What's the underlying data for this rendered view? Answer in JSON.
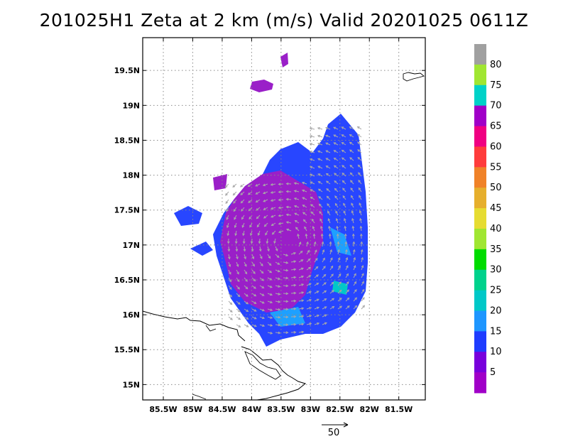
{
  "chart_data": {
    "type": "map-field",
    "title": "201025H1 Zeta at 2 km (m/s) Valid 20201025 0611Z",
    "x_tick_labels": [
      "85.5W",
      "85W",
      "84.5W",
      "84W",
      "83.5W",
      "83W",
      "82.5W",
      "82W",
      "81.5W"
    ],
    "y_tick_labels": [
      "19.5N",
      "19N",
      "18.5N",
      "18N",
      "17.5N",
      "17N",
      "16.5N",
      "16N",
      "15.5N",
      "15N"
    ],
    "lon_ticks": [
      -85.5,
      -85,
      -84.5,
      -84,
      -83.5,
      -83,
      -82.5,
      -82,
      -81.5
    ],
    "lat_ticks": [
      19.5,
      19,
      18.5,
      18,
      17.5,
      17,
      16.5,
      16,
      15.5,
      15
    ],
    "lon_range": [
      -85.85,
      -81.05
    ],
    "lat_range": [
      14.78,
      19.97
    ],
    "grid": true,
    "colorbar": {
      "labels": [
        "80",
        "75",
        "70",
        "65",
        "60",
        "55",
        "50",
        "45",
        "40",
        "35",
        "30",
        "25",
        "20",
        "15",
        "10",
        "5"
      ],
      "colors": [
        "#a0a0a0",
        "#a0e632",
        "#00d2c8",
        "#a000c8",
        "#f00082",
        "#ff3c3c",
        "#f08228",
        "#e6af2d",
        "#e6dc32",
        "#a0e632",
        "#00dc00",
        "#00d28c",
        "#00c8c8",
        "#1e96ff",
        "#1e3cff",
        "#7800dc",
        "#a000c8"
      ]
    },
    "vector_scale_label": "50"
  }
}
